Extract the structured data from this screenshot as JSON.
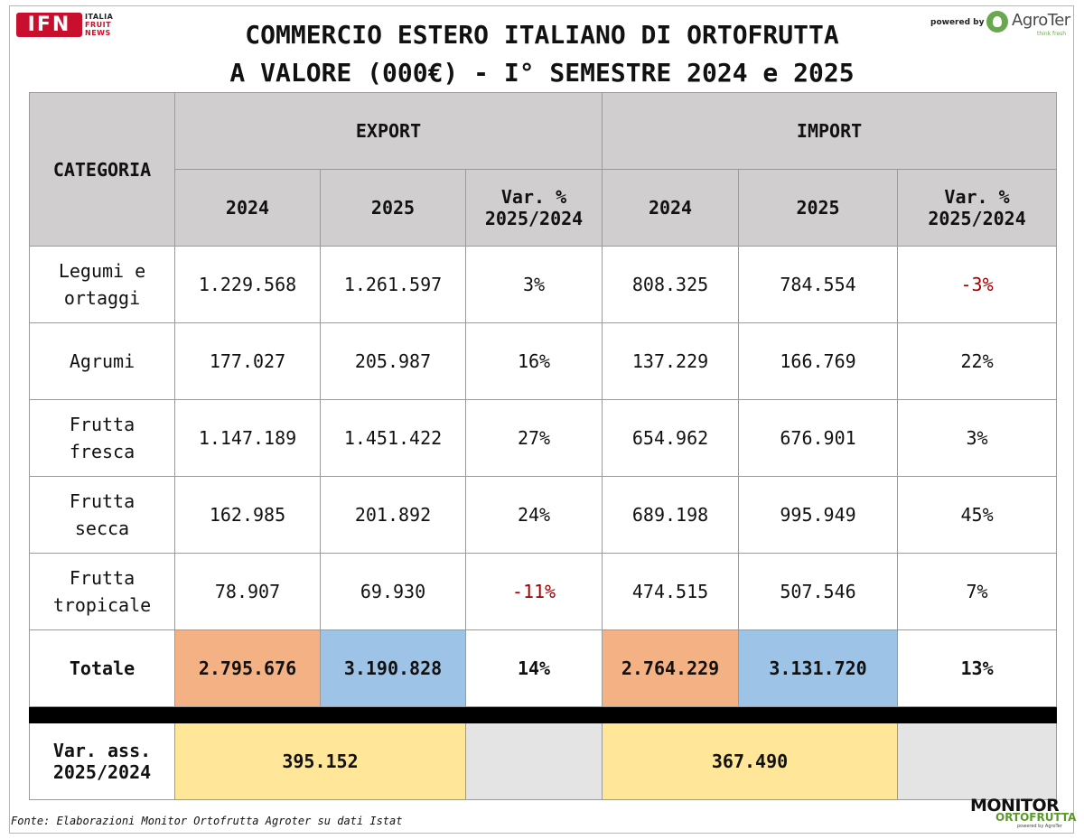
{
  "logos": {
    "ifn_badge": "IFN",
    "ifn_words": [
      "ITALIA",
      "FRUIT",
      "NEWS"
    ],
    "powered_by": "powered by",
    "agroter_name": "AgroTer",
    "agroter_tag": "think fresh",
    "monitor_top": "MONITOR",
    "monitor_bottom": "ORTOFRUTTA",
    "monitor_small": "powered by AgroTer"
  },
  "title": {
    "line1": "COMMERCIO ESTERO ITALIANO DI ORTOFRUTTA",
    "line2": "A VALORE (000€) - I° SEMESTRE 2024 e 2025"
  },
  "table": {
    "header": {
      "categoria": "CATEGORIA",
      "export": "EXPORT",
      "import": "IMPORT",
      "col_2024": "2024",
      "col_2025": "2025",
      "var_line1": "Var. %",
      "var_line2": "2025/2024"
    },
    "rows": [
      {
        "cat1": "Legumi e",
        "cat2": "ortaggi",
        "exp2024": "1.229.568",
        "exp2025": "1.261.597",
        "expvar": "3%",
        "imp2024": "808.325",
        "imp2025": "784.554",
        "impvar": "-3%"
      },
      {
        "cat1": "Agrumi",
        "cat2": "",
        "exp2024": "177.027",
        "exp2025": "205.987",
        "expvar": "16%",
        "imp2024": "137.229",
        "imp2025": "166.769",
        "impvar": "22%"
      },
      {
        "cat1": "Frutta",
        "cat2": "fresca",
        "exp2024": "1.147.189",
        "exp2025": "1.451.422",
        "expvar": "27%",
        "imp2024": "654.962",
        "imp2025": "676.901",
        "impvar": "3%"
      },
      {
        "cat1": "Frutta",
        "cat2": "secca",
        "exp2024": "162.985",
        "exp2025": "201.892",
        "expvar": "24%",
        "imp2024": "689.198",
        "imp2025": "995.949",
        "impvar": "45%"
      },
      {
        "cat1": "Frutta",
        "cat2": "tropicale",
        "exp2024": "78.907",
        "exp2025": "69.930",
        "expvar": "-11%",
        "imp2024": "474.515",
        "imp2025": "507.546",
        "impvar": "7%"
      }
    ],
    "totale": {
      "label": "Totale",
      "exp2024": "2.795.676",
      "exp2025": "3.190.828",
      "expvar": "14%",
      "imp2024": "2.764.229",
      "imp2025": "3.131.720",
      "impvar": "13%"
    },
    "var_ass": {
      "label1": "Var. ass.",
      "label2": "2025/2024",
      "export": "395.152",
      "import": "367.490"
    }
  },
  "footer": {
    "fonte": "Fonte: Elaborazioni Monitor Ortofrutta Agroter su dati Istat"
  },
  "colors": {
    "header_bg": "#d0cece",
    "total_2024_bg": "#f4b183",
    "total_2025_bg": "#9dc3e6",
    "var_ass_bg": "#ffe699",
    "negative_text": "#a50000"
  }
}
